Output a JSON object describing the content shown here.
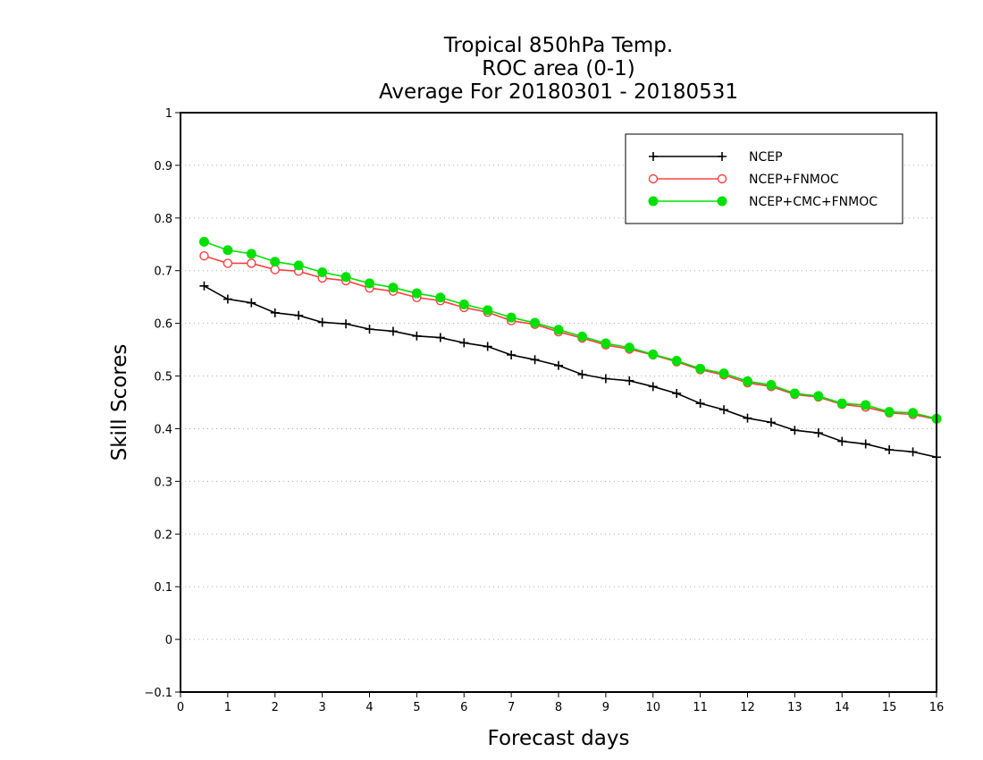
{
  "chart_data": {
    "type": "line",
    "title_lines": [
      "Tropical 850hPa Temp.",
      "ROC area (0-1)",
      "Average For 20180301 - 20180531"
    ],
    "xlabel": "Forecast days",
    "ylabel": "Skill Scores",
    "xlim": [
      0,
      16
    ],
    "ylim": [
      -0.1,
      1
    ],
    "x_ticks": [
      "0",
      "1",
      "2",
      "3",
      "4",
      "5",
      "6",
      "7",
      "8",
      "9",
      "10",
      "11",
      "12",
      "13",
      "14",
      "15",
      "16"
    ],
    "y_ticks": [
      "−0.1",
      "0",
      "0.1",
      "0.2",
      "0.3",
      "0.4",
      "0.5",
      "0.6",
      "0.7",
      "0.8",
      "0.9",
      "1"
    ],
    "grid": "horizontal-dotted",
    "legend_position": "top-right",
    "x": [
      0.5,
      1,
      1.5,
      2,
      2.5,
      3,
      3.5,
      4,
      4.5,
      5,
      5.5,
      6,
      6.5,
      7,
      7.5,
      8,
      8.5,
      9,
      9.5,
      10,
      10.5,
      11,
      11.5,
      12,
      12.5,
      13,
      13.5,
      14,
      14.5,
      15,
      15.5,
      16
    ],
    "series": [
      {
        "name": "NCEP",
        "color": "#000000",
        "marker": "plus",
        "values": [
          0.671,
          0.646,
          0.639,
          0.62,
          0.615,
          0.602,
          0.599,
          0.589,
          0.585,
          0.576,
          0.573,
          0.563,
          0.556,
          0.54,
          0.531,
          0.52,
          0.503,
          0.495,
          0.491,
          0.48,
          0.467,
          0.448,
          0.436,
          0.42,
          0.412,
          0.397,
          0.392,
          0.376,
          0.371,
          0.36,
          0.356,
          0.346
        ]
      },
      {
        "name": "NCEP+FNMOC",
        "color": "#ff4040",
        "marker": "open-circle",
        "values": [
          0.728,
          0.714,
          0.714,
          0.702,
          0.699,
          0.686,
          0.681,
          0.667,
          0.661,
          0.649,
          0.643,
          0.63,
          0.621,
          0.605,
          0.598,
          0.584,
          0.572,
          0.559,
          0.551,
          0.54,
          0.527,
          0.512,
          0.502,
          0.487,
          0.48,
          0.465,
          0.46,
          0.446,
          0.441,
          0.43,
          0.427,
          0.418
        ]
      },
      {
        "name": "NCEP+CMC+FNMOC",
        "color": "#00e000",
        "marker": "filled-circle",
        "values": [
          0.755,
          0.739,
          0.732,
          0.717,
          0.71,
          0.697,
          0.688,
          0.676,
          0.668,
          0.657,
          0.649,
          0.636,
          0.625,
          0.611,
          0.601,
          0.588,
          0.575,
          0.562,
          0.554,
          0.541,
          0.529,
          0.514,
          0.505,
          0.49,
          0.483,
          0.467,
          0.462,
          0.448,
          0.445,
          0.432,
          0.43,
          0.419
        ]
      }
    ]
  }
}
